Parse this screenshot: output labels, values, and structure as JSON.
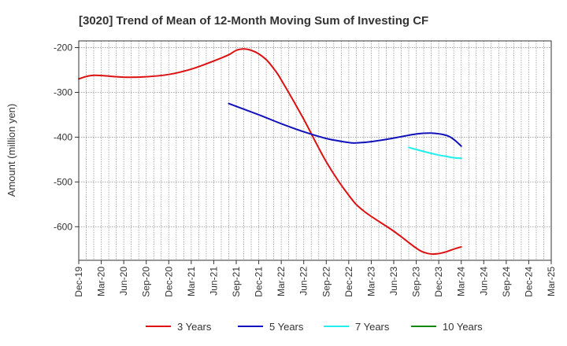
{
  "chart_data": {
    "type": "line",
    "title": "[3020]  Trend of Mean of 12-Month Moving Sum of Investing CF",
    "xlabel": "",
    "ylabel": "Amount (million yen)",
    "ylim": [
      -675,
      -185
    ],
    "yticks": [
      -200,
      -300,
      -400,
      -500,
      -600
    ],
    "x_range": [
      "2019-12",
      "2025-03"
    ],
    "categories": [
      "Dec-19",
      "Mar-20",
      "Jun-20",
      "Sep-20",
      "Dec-20",
      "Mar-21",
      "Jun-21",
      "Sep-21",
      "Dec-21",
      "Mar-22",
      "Jun-22",
      "Sep-22",
      "Dec-22",
      "Mar-23",
      "Jun-23",
      "Sep-23",
      "Dec-23",
      "Mar-24",
      "Jun-24",
      "Sep-24",
      "Dec-24",
      "Mar-25"
    ],
    "grid": true,
    "legend_position": "bottom",
    "series": [
      {
        "name": "3 Years",
        "color": "#dd1111",
        "points": [
          [
            "2019-12",
            -270
          ],
          [
            "2020-02",
            -262
          ],
          [
            "2020-06",
            -266
          ],
          [
            "2020-09",
            -265
          ],
          [
            "2020-12",
            -260
          ],
          [
            "2021-03",
            -248
          ],
          [
            "2021-06",
            -230
          ],
          [
            "2021-08",
            -216
          ],
          [
            "2021-09",
            -206
          ],
          [
            "2021-10",
            -203
          ],
          [
            "2021-11",
            -206
          ],
          [
            "2021-12",
            -214
          ],
          [
            "2022-01",
            -227
          ],
          [
            "2022-02",
            -247
          ],
          [
            "2022-03",
            -272
          ],
          [
            "2022-06",
            -360
          ],
          [
            "2022-09",
            -455
          ],
          [
            "2022-12",
            -530
          ],
          [
            "2023-02",
            -565
          ],
          [
            "2023-06",
            -610
          ],
          [
            "2023-09",
            -648
          ],
          [
            "2023-10",
            -657
          ],
          [
            "2023-11",
            -661
          ],
          [
            "2023-12",
            -660
          ],
          [
            "2024-01",
            -656
          ],
          [
            "2024-02",
            -650
          ],
          [
            "2024-03",
            -645
          ]
        ]
      },
      {
        "name": "5 Years",
        "color": "#1111bb",
        "points": [
          [
            "2021-08",
            -325
          ],
          [
            "2021-12",
            -350
          ],
          [
            "2022-03",
            -370
          ],
          [
            "2022-06",
            -388
          ],
          [
            "2022-09",
            -403
          ],
          [
            "2022-12",
            -412
          ],
          [
            "2023-01",
            -413
          ],
          [
            "2023-03",
            -410
          ],
          [
            "2023-06",
            -402
          ],
          [
            "2023-09",
            -393
          ],
          [
            "2023-11",
            -391
          ],
          [
            "2024-01",
            -396
          ],
          [
            "2024-02",
            -405
          ],
          [
            "2024-03",
            -420
          ]
        ]
      },
      {
        "name": "7 Years",
        "color": "#22eeee",
        "points": [
          [
            "2023-08",
            -423
          ],
          [
            "2023-10",
            -432
          ],
          [
            "2023-12",
            -440
          ],
          [
            "2024-01",
            -443
          ],
          [
            "2024-02",
            -446
          ],
          [
            "2024-03",
            -447
          ]
        ]
      },
      {
        "name": "10 Years",
        "color": "#118811",
        "points": []
      }
    ]
  }
}
